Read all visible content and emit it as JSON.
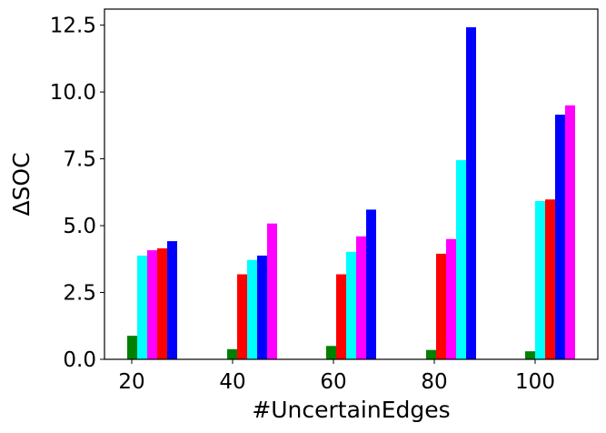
{
  "chart_data": {
    "type": "bar",
    "xlabel": "#UncertainEdges",
    "ylabel": "ΔSOC",
    "categories": [
      "20",
      "40",
      "60",
      "80",
      "100"
    ],
    "ylim": [
      0,
      13.1
    ],
    "yticks": [
      0.0,
      2.5,
      5.0,
      7.5,
      10.0,
      12.5
    ],
    "ytick_labels": [
      "0.0",
      "2.5",
      "5.0",
      "7.5",
      "10.0",
      "12.5"
    ],
    "grid": false,
    "legend": "none",
    "series": [
      {
        "color": "#008000",
        "values": [
          0.88,
          0.38,
          0.5,
          0.35,
          0.3
        ]
      },
      {
        "color": "#00ffff",
        "values": [
          3.88,
          0.0,
          0.0,
          0.0,
          0.0
        ]
      },
      {
        "color": "#ff00ff",
        "values": [
          4.08,
          0.0,
          0.0,
          0.0,
          0.0
        ]
      },
      {
        "color": "#ff0000",
        "values": [
          4.15,
          3.18,
          3.18,
          3.95,
          0.0
        ]
      },
      {
        "color": "#0000ff",
        "values": [
          4.42,
          0.0,
          0.0,
          0.0,
          0.0
        ]
      },
      {
        "color": "#00ffff",
        "values": [
          0.0,
          3.72,
          4.02,
          0.0,
          0.0
        ]
      },
      {
        "color": "#0000ff",
        "values": [
          0.0,
          3.88,
          0.0,
          0.0,
          0.0
        ]
      },
      {
        "color": "#ff00ff",
        "values": [
          0.0,
          5.08,
          4.6,
          4.5,
          0.0
        ]
      },
      {
        "color": "#0000ff",
        "values": [
          0.0,
          0.0,
          5.6,
          0.0,
          0.0
        ]
      },
      {
        "color": "#00ffff",
        "values": [
          0.0,
          0.0,
          0.0,
          7.45,
          5.92
        ]
      },
      {
        "color": "#0000ff",
        "values": [
          0.0,
          0.0,
          0.0,
          12.42,
          0.0
        ]
      },
      {
        "color": "#ff0000",
        "values": [
          0.0,
          0.0,
          0.0,
          0.0,
          5.98
        ]
      },
      {
        "color": "#0000ff",
        "values": [
          0.0,
          0.0,
          0.0,
          0.0,
          9.15
        ]
      },
      {
        "color": "#ff00ff",
        "values": [
          0.0,
          0.0,
          0.0,
          0.0,
          9.5
        ]
      }
    ]
  }
}
